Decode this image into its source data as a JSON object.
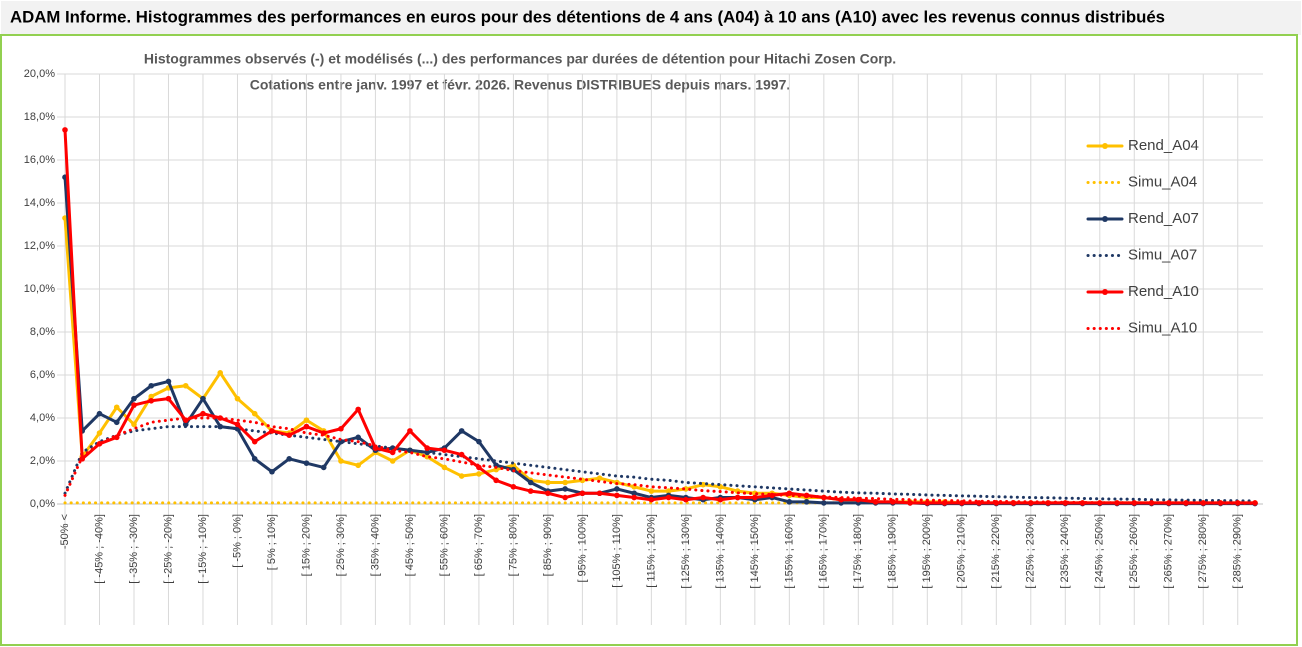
{
  "chart_data": {
    "type": "line",
    "title": "ADAM Informe. Histogrammes des performances en euros pour des détentions de 4 ans (A04) à 10 ans (A10) avec les revenus connus distribués",
    "subtitle": [
      "Histogrammes observés (-) et modélisés (...) des performances par durées de détention pour Hitachi Zosen Corp.",
      "Cotations entre janv. 1997 et févr. 2026. Revenus DISTRIBUES depuis mars. 1997."
    ],
    "categories": [
      "-50% <",
      null,
      "[ -45% ; -40%]",
      null,
      "[ -35% ; -30%]",
      null,
      "[ -25% ; -20%]",
      null,
      "[ -15% ; -10%]",
      null,
      "[ -5% ; 0%]",
      null,
      "[ 5% ; 10%]",
      null,
      "[ 15% ; 20%]",
      null,
      "[ 25% ; 30%]",
      null,
      "[ 35% ; 40%]",
      null,
      "[ 45% ; 50%]",
      null,
      "[ 55% ; 60%]",
      null,
      "[ 65% ; 70%]",
      null,
      "[ 75% ; 80%]",
      null,
      "[ 85% ; 90%]",
      null,
      "[ 95% ; 100%]",
      null,
      "[ 105% ; 110%]",
      null,
      "[ 115% ; 120%]",
      null,
      "[ 125% ; 130%]",
      null,
      "[ 135% ; 140%]",
      null,
      "[ 145% ; 150%]",
      null,
      "[ 155% ; 160%]",
      null,
      "[ 165% ; 170%]",
      null,
      "[ 175% ; 180%]",
      null,
      "[ 185% ; 190%]",
      null,
      "[ 195% ; 200%]",
      null,
      "[ 205% ; 210%]",
      null,
      "[ 215% ; 220%]",
      null,
      "[ 225% ; 230%]",
      null,
      "[ 235% ; 240%]",
      null,
      "[ 245% ; 250%]",
      null,
      "[ 255% ; 260%]",
      null,
      "[ 265% ; 270%]",
      null,
      "[ 275% ; 280%]",
      null,
      "[ 285% ; 290%]",
      null
    ],
    "series": [
      {
        "name": "Rend_A04",
        "color": "#ffc000",
        "style": "solid",
        "values": [
          13.3,
          2.2,
          3.3,
          4.5,
          3.7,
          5.0,
          5.4,
          5.5,
          4.9,
          6.1,
          4.9,
          4.2,
          3.4,
          3.3,
          3.9,
          3.4,
          2.0,
          1.8,
          2.4,
          2.0,
          2.5,
          2.2,
          1.7,
          1.3,
          1.4,
          1.6,
          1.8,
          1.1,
          1.0,
          1.0,
          1.1,
          1.2,
          1.0,
          0.8,
          0.6,
          0.6,
          0.7,
          0.9,
          0.8,
          0.6,
          0.5,
          0.5,
          0.4,
          0.3,
          0.3,
          0.2,
          0.2,
          0.1,
          0.1,
          0.1,
          0.1,
          0.1,
          0.05,
          0.05,
          0.05,
          0.05,
          0.05,
          0.05,
          0.05,
          0.05,
          0.05,
          0.05,
          0.05,
          0.05,
          0.05,
          0.05,
          0.05,
          0.05,
          0.05,
          0.05
        ]
      },
      {
        "name": "Simu_A04",
        "color": "#ffc000",
        "style": "dotted",
        "values": [
          0.05,
          0.05,
          0.05,
          0.05,
          0.05,
          0.05,
          0.05,
          0.05,
          0.05,
          0.05,
          0.05,
          0.05,
          0.05,
          0.05,
          0.05,
          0.05,
          0.05,
          0.05,
          0.05,
          0.05,
          0.05,
          0.05,
          0.05,
          0.05,
          0.05,
          0.05,
          0.05,
          0.05,
          0.05,
          0.05,
          0.05,
          0.05,
          0.05,
          0.05,
          0.05,
          0.05,
          0.05,
          0.05,
          0.05,
          0.05,
          0.05,
          0.05,
          0.05,
          0.05,
          0.05,
          0.05,
          0.05,
          0.05,
          0.05,
          0.05,
          0.05,
          0.05,
          0.05,
          0.05,
          0.05,
          0.05,
          0.05,
          0.05,
          0.05,
          0.05,
          0.05,
          0.05,
          0.05,
          0.05,
          0.05,
          0.05,
          0.05,
          0.05,
          0.05,
          0.05
        ]
      },
      {
        "name": "Rend_A07",
        "color": "#1f3864",
        "style": "solid",
        "values": [
          15.2,
          3.4,
          4.2,
          3.8,
          4.9,
          5.5,
          5.7,
          3.7,
          4.9,
          3.6,
          3.5,
          2.1,
          1.5,
          2.1,
          1.9,
          1.7,
          2.9,
          3.1,
          2.5,
          2.6,
          2.5,
          2.4,
          2.6,
          3.4,
          2.9,
          1.8,
          1.6,
          1.0,
          0.6,
          0.7,
          0.5,
          0.5,
          0.7,
          0.5,
          0.3,
          0.4,
          0.3,
          0.2,
          0.3,
          0.3,
          0.2,
          0.3,
          0.1,
          0.1,
          0.05,
          0.05,
          0.05,
          0.05,
          0.05,
          0.05,
          0.02,
          0.02,
          0.02,
          0.02,
          0.02,
          0.02,
          0.02,
          0.02,
          0.02,
          0.02,
          0.02,
          0.02,
          0.02,
          0.02,
          0.02,
          0.02,
          0.02,
          0.02,
          0.02,
          0.02
        ]
      },
      {
        "name": "Simu_A07",
        "color": "#1f3864",
        "style": "dotted",
        "values": [
          0.5,
          2.4,
          2.9,
          3.2,
          3.4,
          3.5,
          3.6,
          3.6,
          3.6,
          3.6,
          3.5,
          3.4,
          3.3,
          3.2,
          3.1,
          3.0,
          2.9,
          2.8,
          2.7,
          2.6,
          2.5,
          2.4,
          2.3,
          2.2,
          2.1,
          2.0,
          1.9,
          1.8,
          1.7,
          1.6,
          1.5,
          1.4,
          1.3,
          1.25,
          1.15,
          1.1,
          1.0,
          0.95,
          0.9,
          0.85,
          0.8,
          0.75,
          0.7,
          0.65,
          0.6,
          0.55,
          0.52,
          0.5,
          0.47,
          0.45,
          0.42,
          0.4,
          0.38,
          0.36,
          0.34,
          0.32,
          0.3,
          0.29,
          0.27,
          0.26,
          0.24,
          0.23,
          0.22,
          0.2,
          0.19,
          0.18,
          0.17,
          0.16,
          0.15,
          0.14
        ]
      },
      {
        "name": "Rend_A10",
        "color": "#ff0000",
        "style": "solid",
        "values": [
          17.4,
          2.1,
          2.8,
          3.1,
          4.6,
          4.8,
          4.9,
          3.9,
          4.2,
          4.0,
          3.7,
          2.9,
          3.4,
          3.2,
          3.6,
          3.3,
          3.5,
          4.4,
          2.6,
          2.4,
          3.4,
          2.6,
          2.5,
          2.3,
          1.7,
          1.1,
          0.8,
          0.6,
          0.5,
          0.3,
          0.5,
          0.5,
          0.4,
          0.3,
          0.2,
          0.3,
          0.2,
          0.3,
          0.2,
          0.3,
          0.3,
          0.4,
          0.5,
          0.4,
          0.3,
          0.2,
          0.2,
          0.1,
          0.1,
          0.05,
          0.05,
          0.05,
          0.05,
          0.05,
          0.05,
          0.05,
          0.05,
          0.05,
          0.05,
          0.05,
          0.05,
          0.05,
          0.05,
          0.05,
          0.05,
          0.05,
          0.05,
          0.05,
          0.05,
          0.05
        ]
      },
      {
        "name": "Simu_A10",
        "color": "#ff0000",
        "style": "dotted",
        "values": [
          0.4,
          2.2,
          2.8,
          3.2,
          3.5,
          3.8,
          3.9,
          4.0,
          4.0,
          4.0,
          3.9,
          3.8,
          3.6,
          3.5,
          3.3,
          3.2,
          3.0,
          2.9,
          2.7,
          2.5,
          2.4,
          2.2,
          2.1,
          1.95,
          1.8,
          1.7,
          1.55,
          1.45,
          1.35,
          1.25,
          1.15,
          1.05,
          0.95,
          0.9,
          0.8,
          0.75,
          0.7,
          0.62,
          0.58,
          0.52,
          0.48,
          0.44,
          0.4,
          0.36,
          0.33,
          0.3,
          0.27,
          0.25,
          0.22,
          0.2,
          0.18,
          0.16,
          0.15,
          0.13,
          0.12,
          0.11,
          0.1,
          0.09,
          0.08,
          0.07,
          0.06,
          0.06,
          0.05,
          0.05,
          0.05,
          0.04,
          0.04,
          0.04,
          0.03,
          0.03
        ]
      }
    ],
    "ylim": [
      0,
      20
    ],
    "yticks": [
      {
        "value": 0,
        "label": "0,0%"
      },
      {
        "value": 2,
        "label": "2,0%"
      },
      {
        "value": 4,
        "label": "4,0%"
      },
      {
        "value": 6,
        "label": "6,0%"
      },
      {
        "value": 8,
        "label": "8,0%"
      },
      {
        "value": 10,
        "label": "10,0%"
      },
      {
        "value": 12,
        "label": "12,0%"
      },
      {
        "value": 14,
        "label": "14,0%"
      },
      {
        "value": 16,
        "label": "16,0%"
      },
      {
        "value": 18,
        "label": "18,0%"
      },
      {
        "value": 20,
        "label": "20,0%"
      }
    ],
    "grid": true,
    "legend": "right"
  }
}
